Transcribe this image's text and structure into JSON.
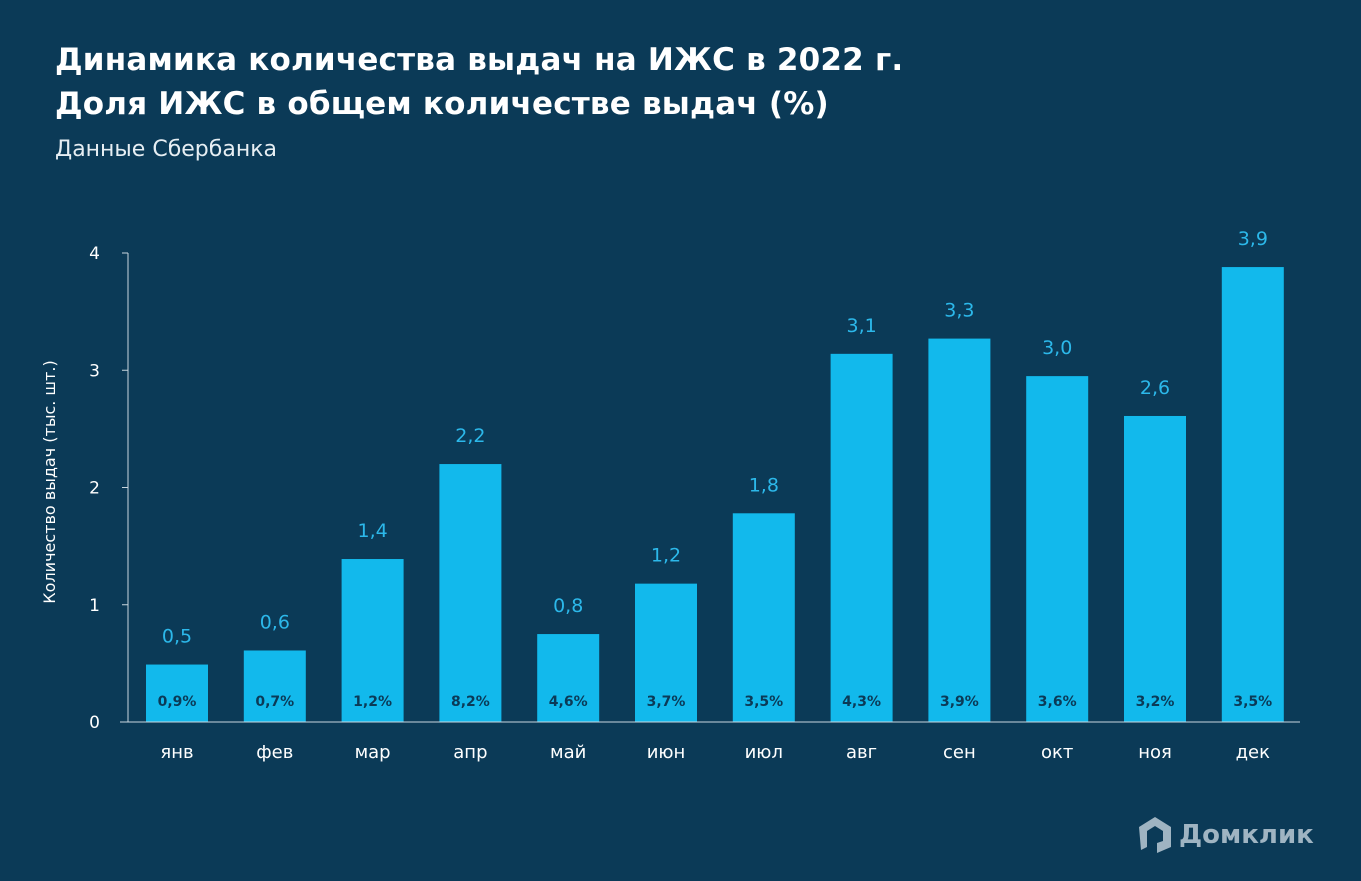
{
  "title_line1": "Динамика количества выдач на ИЖС в 2022 г.",
  "title_line2": "Доля ИЖС в общем количестве выдач (%)",
  "subtitle": "Данные Сбербанка",
  "logo_text": "Домклик",
  "colors": {
    "background": "#0b3a57",
    "bar": "#12b9ec",
    "value_label": "#2cb8ea",
    "share_label": "#0b3a57"
  },
  "chart_data": {
    "type": "bar",
    "title": "Динамика количества выдач на ИЖС в 2022 г.",
    "ylabel": "Количество выдач (тыс. шт.)",
    "xlabel": "",
    "ylim": [
      0,
      4
    ],
    "yticks": [
      "0",
      "1",
      "2",
      "3",
      "4"
    ],
    "grid": false,
    "categories": [
      "янв",
      "фев",
      "мар",
      "апр",
      "май",
      "июн",
      "июл",
      "авг",
      "сен",
      "окт",
      "ноя",
      "дек"
    ],
    "values": [
      0.49,
      0.61,
      1.39,
      2.2,
      0.75,
      1.18,
      1.78,
      3.14,
      3.27,
      2.95,
      2.61,
      3.88
    ],
    "value_labels": [
      "0,5",
      "0,6",
      "1,4",
      "2,2",
      "0,8",
      "1,2",
      "1,8",
      "3,1",
      "3,3",
      "3,0",
      "2,6",
      "3,9"
    ],
    "share_labels": [
      "0,9%",
      "0,7%",
      "1,2%",
      "8,2%",
      "4,6%",
      "3,7%",
      "3,5%",
      "4,3%",
      "3,9%",
      "3,6%",
      "3,2%",
      "3,5%"
    ]
  }
}
